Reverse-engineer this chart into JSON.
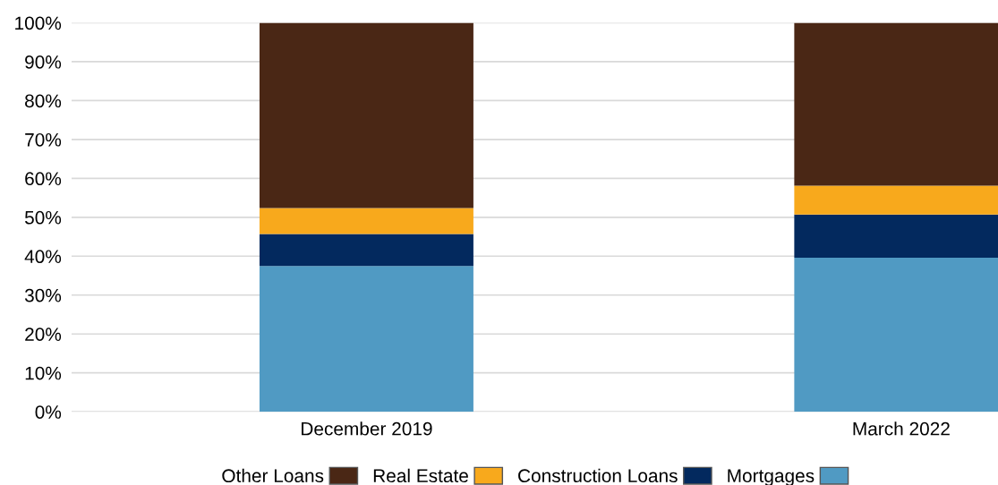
{
  "chart_data": {
    "type": "bar",
    "stacked": true,
    "categories": [
      "December 2019",
      "March 2022"
    ],
    "series": [
      {
        "name": "Mortgages",
        "color": "#509ac3",
        "values": [
          37.5,
          39.6
        ]
      },
      {
        "name": "Construction Loans",
        "color": "#03295e",
        "values": [
          8.2,
          11.1
        ]
      },
      {
        "name": "Real Estate",
        "color": "#f8a91c",
        "values": [
          6.7,
          7.4
        ]
      },
      {
        "name": "Other Loans",
        "color": "#4a2715",
        "values": [
          47.6,
          41.9
        ]
      }
    ],
    "ylim": [
      0,
      100
    ],
    "yticks": [
      {
        "value": 0,
        "label": "0%"
      },
      {
        "value": 10,
        "label": "10%"
      },
      {
        "value": 20,
        "label": "20%"
      },
      {
        "value": 30,
        "label": "30%"
      },
      {
        "value": 40,
        "label": "40%"
      },
      {
        "value": 50,
        "label": "50%"
      },
      {
        "value": 60,
        "label": "60%"
      },
      {
        "value": 70,
        "label": "70%"
      },
      {
        "value": 80,
        "label": "80%"
      },
      {
        "value": 90,
        "label": "90%"
      },
      {
        "value": 100,
        "label": "100%"
      }
    ],
    "grid": "y",
    "legend": "bottom"
  }
}
